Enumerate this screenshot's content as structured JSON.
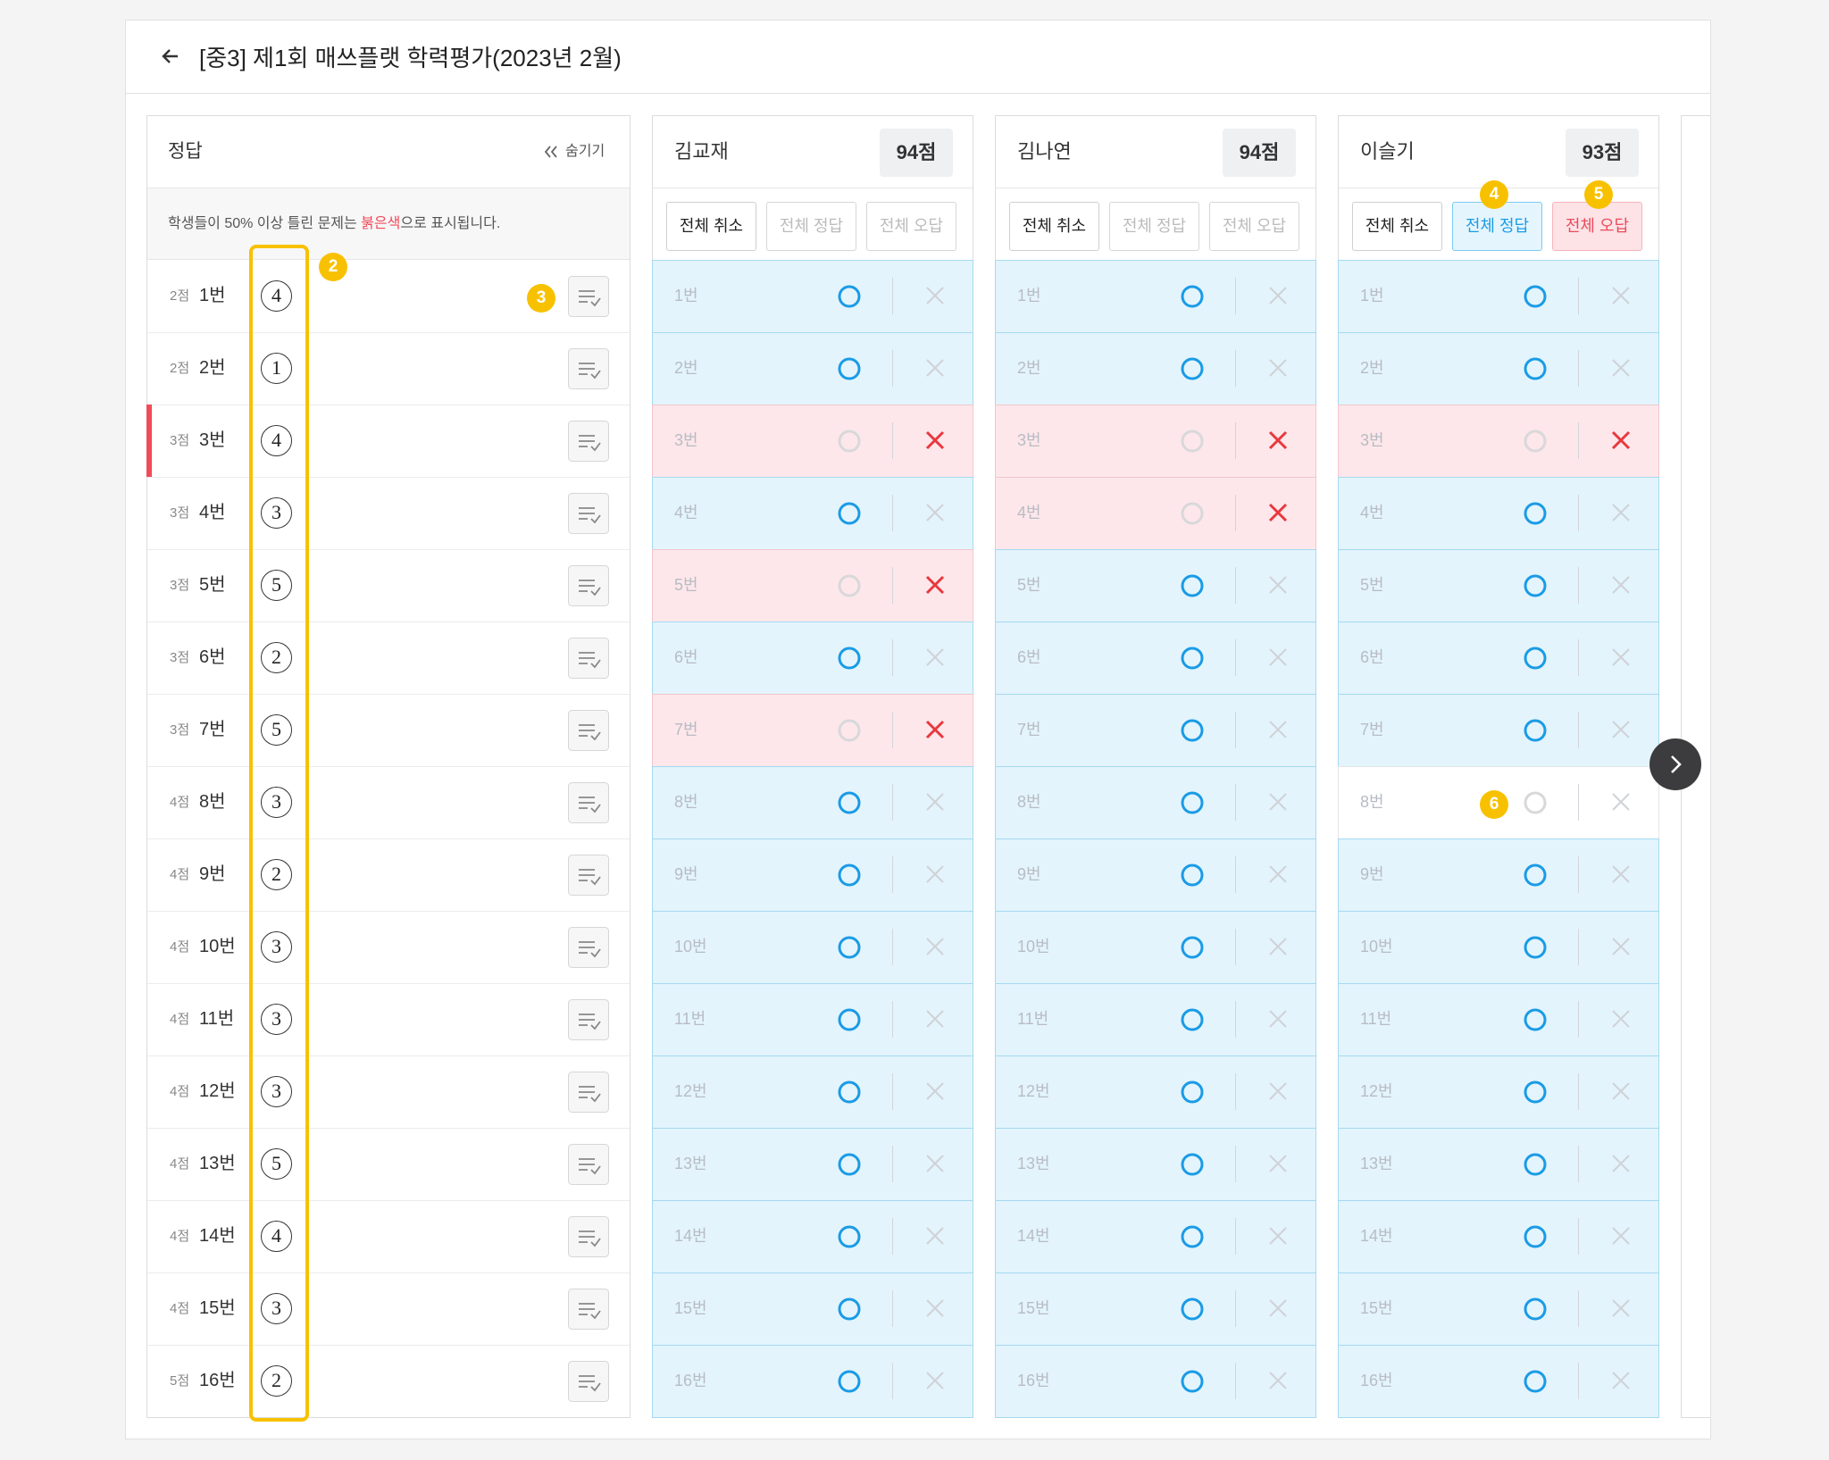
{
  "header": {
    "title": "[중3] 제1회 매쓰플랫 학력평가(2023년 2월)"
  },
  "answers": {
    "title": "정답",
    "hide": "숨기기",
    "notice": [
      "학생들이 50% 이상 틀린 문제는 ",
      "붉은색",
      "으로 표시됩니다."
    ],
    "rows": [
      {
        "points": "2점",
        "number": "1번",
        "answer": "4"
      },
      {
        "points": "2점",
        "number": "2번",
        "answer": "1"
      },
      {
        "points": "3점",
        "number": "3번",
        "answer": "4",
        "flagged": true
      },
      {
        "points": "3점",
        "number": "4번",
        "answer": "3"
      },
      {
        "points": "3점",
        "number": "5번",
        "answer": "5"
      },
      {
        "points": "3점",
        "number": "6번",
        "answer": "2"
      },
      {
        "points": "3점",
        "number": "7번",
        "answer": "5"
      },
      {
        "points": "4점",
        "number": "8번",
        "answer": "3"
      },
      {
        "points": "4점",
        "number": "9번",
        "answer": "2"
      },
      {
        "points": "4점",
        "number": "10번",
        "answer": "3"
      },
      {
        "points": "4점",
        "number": "11번",
        "answer": "3"
      },
      {
        "points": "4점",
        "number": "12번",
        "answer": "3"
      },
      {
        "points": "4점",
        "number": "13번",
        "answer": "5"
      },
      {
        "points": "4점",
        "number": "14번",
        "answer": "4"
      },
      {
        "points": "4점",
        "number": "15번",
        "answer": "3"
      },
      {
        "points": "5점",
        "number": "16번",
        "answer": "2"
      }
    ]
  },
  "buttons": [
    "전체 취소",
    "전체 정답",
    "전체 오답"
  ],
  "students": [
    {
      "name": "김교재",
      "score": "94점",
      "results": [
        "O",
        "O",
        "X",
        "O",
        "X",
        "O",
        "X",
        "O",
        "O",
        "O",
        "O",
        "O",
        "O",
        "O",
        "O",
        "O"
      ]
    },
    {
      "name": "김나연",
      "score": "94점",
      "results": [
        "O",
        "O",
        "X",
        "X",
        "O",
        "O",
        "O",
        "O",
        "O",
        "O",
        "O",
        "O",
        "O",
        "O",
        "O",
        "O"
      ]
    },
    {
      "name": "이슬기",
      "score": "93점",
      "buttons_highlighted": true,
      "results": [
        "O",
        "O",
        "X",
        "O",
        "O",
        "O",
        "O",
        null,
        "O",
        "O",
        "O",
        "O",
        "O",
        "O",
        "O",
        "O"
      ]
    }
  ],
  "annotations": [
    "2",
    "3",
    "4",
    "5",
    "6"
  ]
}
